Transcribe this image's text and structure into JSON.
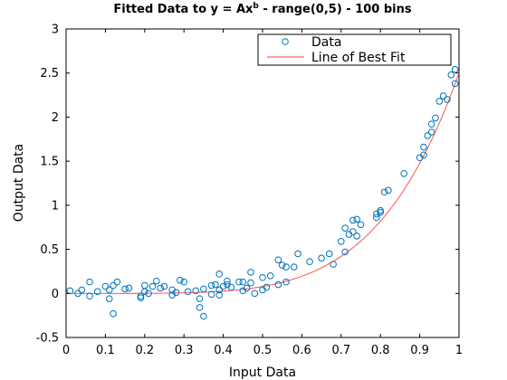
{
  "chart_data": {
    "type": "scatter",
    "title": {
      "prefix": "Fitted Data to y = Ax",
      "sup": "b",
      "suffix": " - range(0,5) - 100 bins"
    },
    "xlabel": "Input Data",
    "ylabel": "Output Data",
    "xlim": [
      0,
      1
    ],
    "ylim": [
      -0.5,
      3
    ],
    "xticks": [
      0,
      0.1,
      0.2,
      0.3,
      0.4,
      0.5,
      0.6,
      0.7,
      0.8,
      0.9,
      1
    ],
    "xtick_labels": [
      "0",
      "0.1",
      "0.2",
      "0.3",
      "0.4",
      "0.5",
      "0.6",
      "0.7",
      "0.8",
      "0.9",
      "1"
    ],
    "yticks": [
      -0.5,
      0,
      0.5,
      1,
      1.5,
      2,
      2.5,
      3
    ],
    "ytick_labels": [
      "-0.5",
      "0",
      "0.5",
      "1",
      "1.5",
      "2",
      "2.5",
      "3"
    ],
    "grid": false,
    "legend_position": "top-right",
    "colors": {
      "data": "#0072bd",
      "fit": "#ff4040"
    },
    "series": [
      {
        "name": "Data",
        "marker": "circle",
        "points": [
          [
            0.01,
            0.03
          ],
          [
            0.03,
            0.0
          ],
          [
            0.04,
            0.04
          ],
          [
            0.06,
            0.13
          ],
          [
            0.06,
            -0.03
          ],
          [
            0.08,
            0.02
          ],
          [
            0.1,
            0.08
          ],
          [
            0.11,
            -0.06
          ],
          [
            0.11,
            0.04
          ],
          [
            0.12,
            0.09
          ],
          [
            0.12,
            -0.23
          ],
          [
            0.13,
            0.13
          ],
          [
            0.15,
            0.05
          ],
          [
            0.16,
            0.06
          ],
          [
            0.19,
            -0.05
          ],
          [
            0.19,
            -0.03
          ],
          [
            0.2,
            0.09
          ],
          [
            0.2,
            0.02
          ],
          [
            0.21,
            0.0
          ],
          [
            0.22,
            0.08
          ],
          [
            0.23,
            0.14
          ],
          [
            0.24,
            0.06
          ],
          [
            0.25,
            0.08
          ],
          [
            0.27,
            0.04
          ],
          [
            0.27,
            -0.02
          ],
          [
            0.28,
            0.01
          ],
          [
            0.29,
            0.15
          ],
          [
            0.3,
            0.13
          ],
          [
            0.31,
            0.02
          ],
          [
            0.33,
            0.03
          ],
          [
            0.34,
            -0.16
          ],
          [
            0.34,
            -0.06
          ],
          [
            0.35,
            -0.26
          ],
          [
            0.35,
            0.05
          ],
          [
            0.37,
            0.09
          ],
          [
            0.37,
            -0.01
          ],
          [
            0.38,
            0.1
          ],
          [
            0.39,
            0.22
          ],
          [
            0.39,
            0.04
          ],
          [
            0.39,
            -0.02
          ],
          [
            0.4,
            0.08
          ],
          [
            0.41,
            0.1
          ],
          [
            0.41,
            0.14
          ],
          [
            0.42,
            0.07
          ],
          [
            0.44,
            0.13
          ],
          [
            0.45,
            0.03
          ],
          [
            0.45,
            0.13
          ],
          [
            0.46,
            0.06
          ],
          [
            0.47,
            0.24
          ],
          [
            0.47,
            0.12
          ],
          [
            0.48,
            0.0
          ],
          [
            0.5,
            0.18
          ],
          [
            0.5,
            0.04
          ],
          [
            0.51,
            0.07
          ],
          [
            0.52,
            0.2
          ],
          [
            0.54,
            0.1
          ],
          [
            0.54,
            0.38
          ],
          [
            0.55,
            0.32
          ],
          [
            0.56,
            0.13
          ],
          [
            0.56,
            0.3
          ],
          [
            0.58,
            0.3
          ],
          [
            0.59,
            0.45
          ],
          [
            0.62,
            0.36
          ],
          [
            0.65,
            0.4
          ],
          [
            0.67,
            0.45
          ],
          [
            0.68,
            0.33
          ],
          [
            0.7,
            0.59
          ],
          [
            0.71,
            0.47
          ],
          [
            0.71,
            0.74
          ],
          [
            0.72,
            0.67
          ],
          [
            0.73,
            0.7
          ],
          [
            0.73,
            0.83
          ],
          [
            0.74,
            0.84
          ],
          [
            0.74,
            0.65
          ],
          [
            0.75,
            0.78
          ],
          [
            0.79,
            0.9
          ],
          [
            0.79,
            0.86
          ],
          [
            0.8,
            0.94
          ],
          [
            0.8,
            0.92
          ],
          [
            0.81,
            1.15
          ],
          [
            0.82,
            1.17
          ],
          [
            0.86,
            1.36
          ],
          [
            0.9,
            1.54
          ],
          [
            0.91,
            1.57
          ],
          [
            0.91,
            1.66
          ],
          [
            0.92,
            1.79
          ],
          [
            0.93,
            1.83
          ],
          [
            0.93,
            1.92
          ],
          [
            0.94,
            1.99
          ],
          [
            0.95,
            2.18
          ],
          [
            0.96,
            2.24
          ],
          [
            0.97,
            2.2
          ],
          [
            0.98,
            2.48
          ],
          [
            0.99,
            2.38
          ],
          [
            0.99,
            2.54
          ]
        ]
      },
      {
        "name": "Line of Best Fit",
        "style": "line",
        "equation": {
          "A": 2.5,
          "b": 5
        }
      }
    ]
  }
}
